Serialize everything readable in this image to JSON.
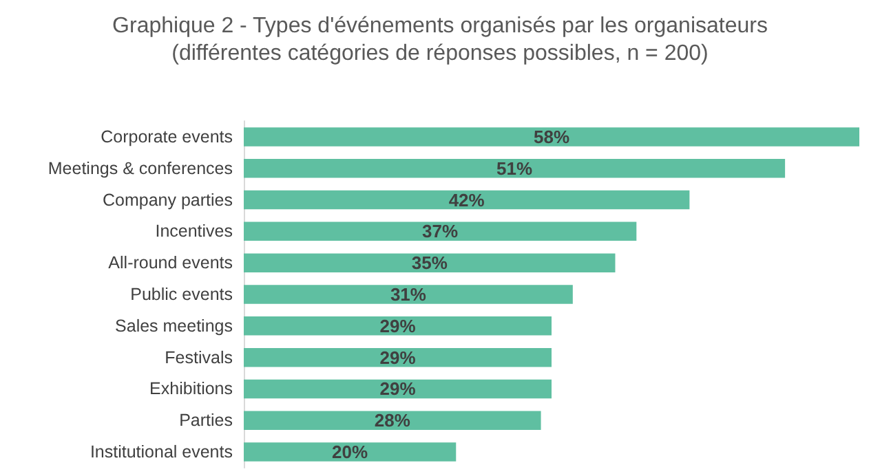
{
  "chart_data": {
    "type": "bar",
    "orientation": "horizontal",
    "title": "Graphique 2 - Types d'événements organisés par les organisateurs",
    "subtitle": "(différentes catégories de réponses possibles, n = 200)",
    "categories": [
      "Corporate events",
      "Meetings & conferences",
      "Company parties",
      "Incentives",
      "All-round events",
      "Public events",
      "Sales meetings",
      "Festivals",
      "Exhibitions",
      "Parties",
      "Institutional events"
    ],
    "values": [
      58,
      51,
      42,
      37,
      35,
      31,
      29,
      29,
      29,
      28,
      20
    ],
    "value_labels": [
      "58%",
      "51%",
      "42%",
      "37%",
      "35%",
      "31%",
      "29%",
      "29%",
      "29%",
      "28%",
      "20%"
    ],
    "color": "#5fbfa1",
    "tick_labels": "y"
  }
}
